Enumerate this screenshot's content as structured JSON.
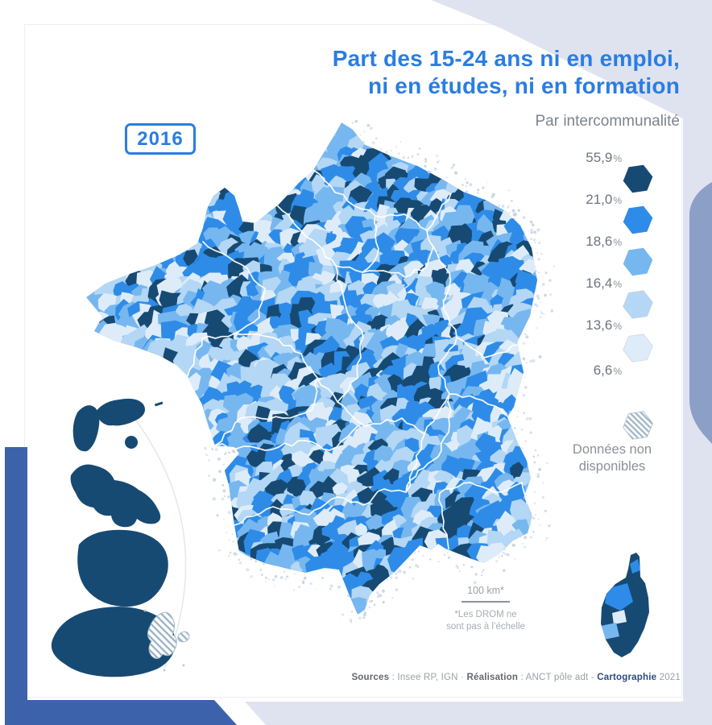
{
  "title": {
    "line1": "Part des 15-24 ans ni en emploi,",
    "line2": "ni en études, ni en formation"
  },
  "subtitle": "Par intercommunalité",
  "year_badge": "2016",
  "legend": {
    "percent_sign": "%",
    "values": [
      "55,9",
      "21,0",
      "18,6",
      "16,4",
      "13,6",
      "6,6"
    ],
    "no_data": {
      "line1": "Données non",
      "line2": "disponibles"
    }
  },
  "scale_bar": {
    "label": "100 km*",
    "note_line1": "*Les DROM ne",
    "note_line2": "sont pas à l’échelle"
  },
  "footer": {
    "sources_label": "Sources",
    "sources_text": " : Insee RP, IGN · ",
    "realisation_label": "Réalisation",
    "realisation_text": " : ANCT pôle adt - ",
    "carto_label": "Cartographie",
    "year": " 2021"
  },
  "map": {
    "type": "choropleth",
    "unit": "%",
    "class_breaks": [
      "55,9",
      "21,0",
      "18,6",
      "16,4",
      "13,6",
      "6,6"
    ],
    "palette": {
      "class1": "#174a73",
      "class2": "#2e8ce8",
      "class3": "#77b7f0",
      "class4": "#b3d7f4",
      "class5": "#deecf9",
      "no_data_hatch": "#9db3c7",
      "dot_halo": "#c6d2e2"
    }
  },
  "colors": {
    "accent_blue": "#2a7de2",
    "frame_blue": "#3c62ab",
    "lavender": "#dfe3ef",
    "muted_blue_shape": "#8b9fc7",
    "text_gray": "#7d838d"
  }
}
